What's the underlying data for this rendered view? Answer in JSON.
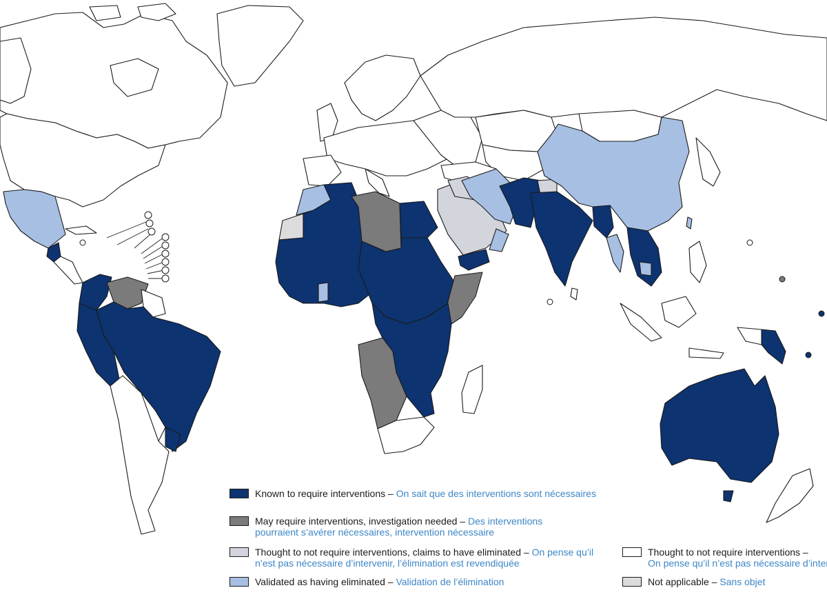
{
  "colors": {
    "known": "#0d3370",
    "may": "#7b7b7b",
    "thought_claims": "#d2d5dc",
    "validated": "#a7bfe2",
    "thought": "#ffffff",
    "not_applicable": "#dcdcdc",
    "french_text": "#3d86c6"
  },
  "legend": [
    {
      "key": "known",
      "en": "Known to require interventions",
      "sep": " – ",
      "fr": "On sait que des interventions sont nécessaires"
    },
    {
      "key": "may",
      "en": "May require interventions, investigation needed",
      "sep": " – ",
      "fr": "Des interventions pourraient s’avérer nécessaires, intervention nécessaire"
    },
    {
      "key": "thought_claims",
      "en": "Thought to not require interventions, claims to have eliminated",
      "sep": " – ",
      "fr": "On pense qu’il n’est pas nécessaire d’intervenir, l’élimination est revendiquée"
    },
    {
      "key": "validated",
      "en": "Validated as having eliminated",
      "sep": " – ",
      "fr": "Validation de l’élimination"
    },
    {
      "key": "thought",
      "en": "Thought to not require interventions",
      "sep": " – ",
      "fr": "On pense qu’il n’est pas nécessaire d’intervenir"
    },
    {
      "key": "not_applicable",
      "en": "Not applicable",
      "sep": " – ",
      "fr": "Sans objet"
    }
  ]
}
